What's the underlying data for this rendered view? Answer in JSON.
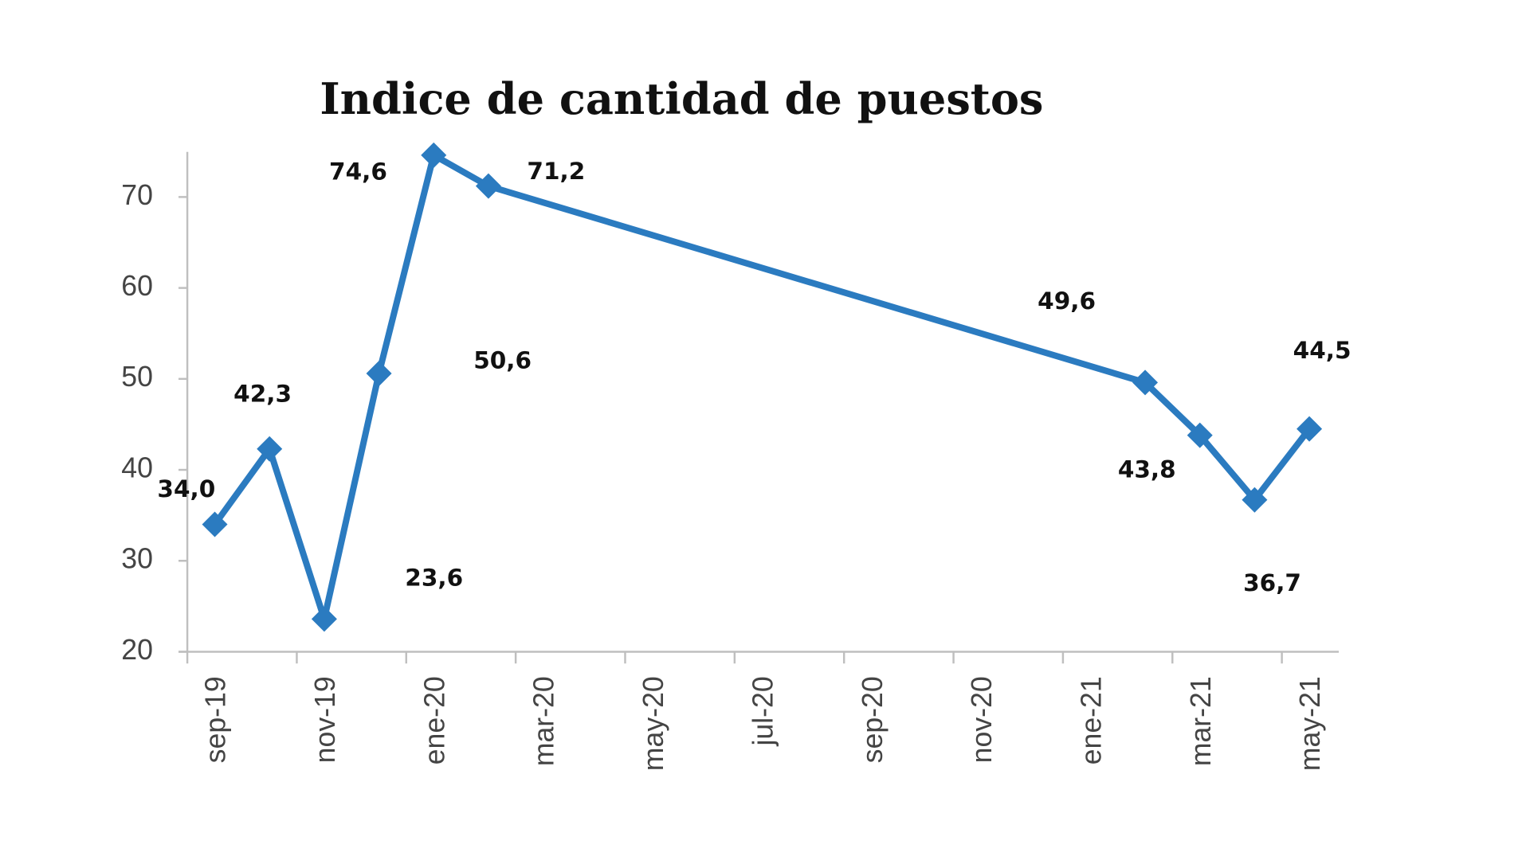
{
  "chart_data": {
    "type": "line",
    "title": "Indice de cantidad de puestos",
    "xlabel": "",
    "ylabel": "",
    "ylim": [
      20,
      75
    ],
    "yticks": [
      20,
      30,
      40,
      50,
      60,
      70
    ],
    "x_tick_labels": [
      "sep-19",
      "nov-19",
      "ene-20",
      "mar-20",
      "may-20",
      "jul-20",
      "sep-20",
      "nov-20",
      "ene-21",
      "mar-21",
      "may-21"
    ],
    "grid": false,
    "legend": "none",
    "series": [
      {
        "name": "Indice de cantidad de puestos",
        "color": "#2b7bc0",
        "points": [
          {
            "x": "sep-19",
            "y": 34.0,
            "label": "34,0"
          },
          {
            "x": "oct-19",
            "y": 42.3,
            "label": "42,3"
          },
          {
            "x": "nov-19",
            "y": 23.6,
            "label": "23,6"
          },
          {
            "x": "dic-19",
            "y": 50.6,
            "label": "50,6"
          },
          {
            "x": "ene-20",
            "y": 74.6,
            "label": "74,6"
          },
          {
            "x": "feb-20",
            "y": 71.2,
            "label": "71,2"
          },
          {
            "x": "feb-21",
            "y": 49.6,
            "label": "49,6"
          },
          {
            "x": "mar-21",
            "y": 43.8,
            "label": "43,8"
          },
          {
            "x": "abr-21",
            "y": 36.7,
            "label": "36,7"
          },
          {
            "x": "may-21",
            "y": 44.5,
            "label": "44,5"
          }
        ]
      }
    ]
  }
}
